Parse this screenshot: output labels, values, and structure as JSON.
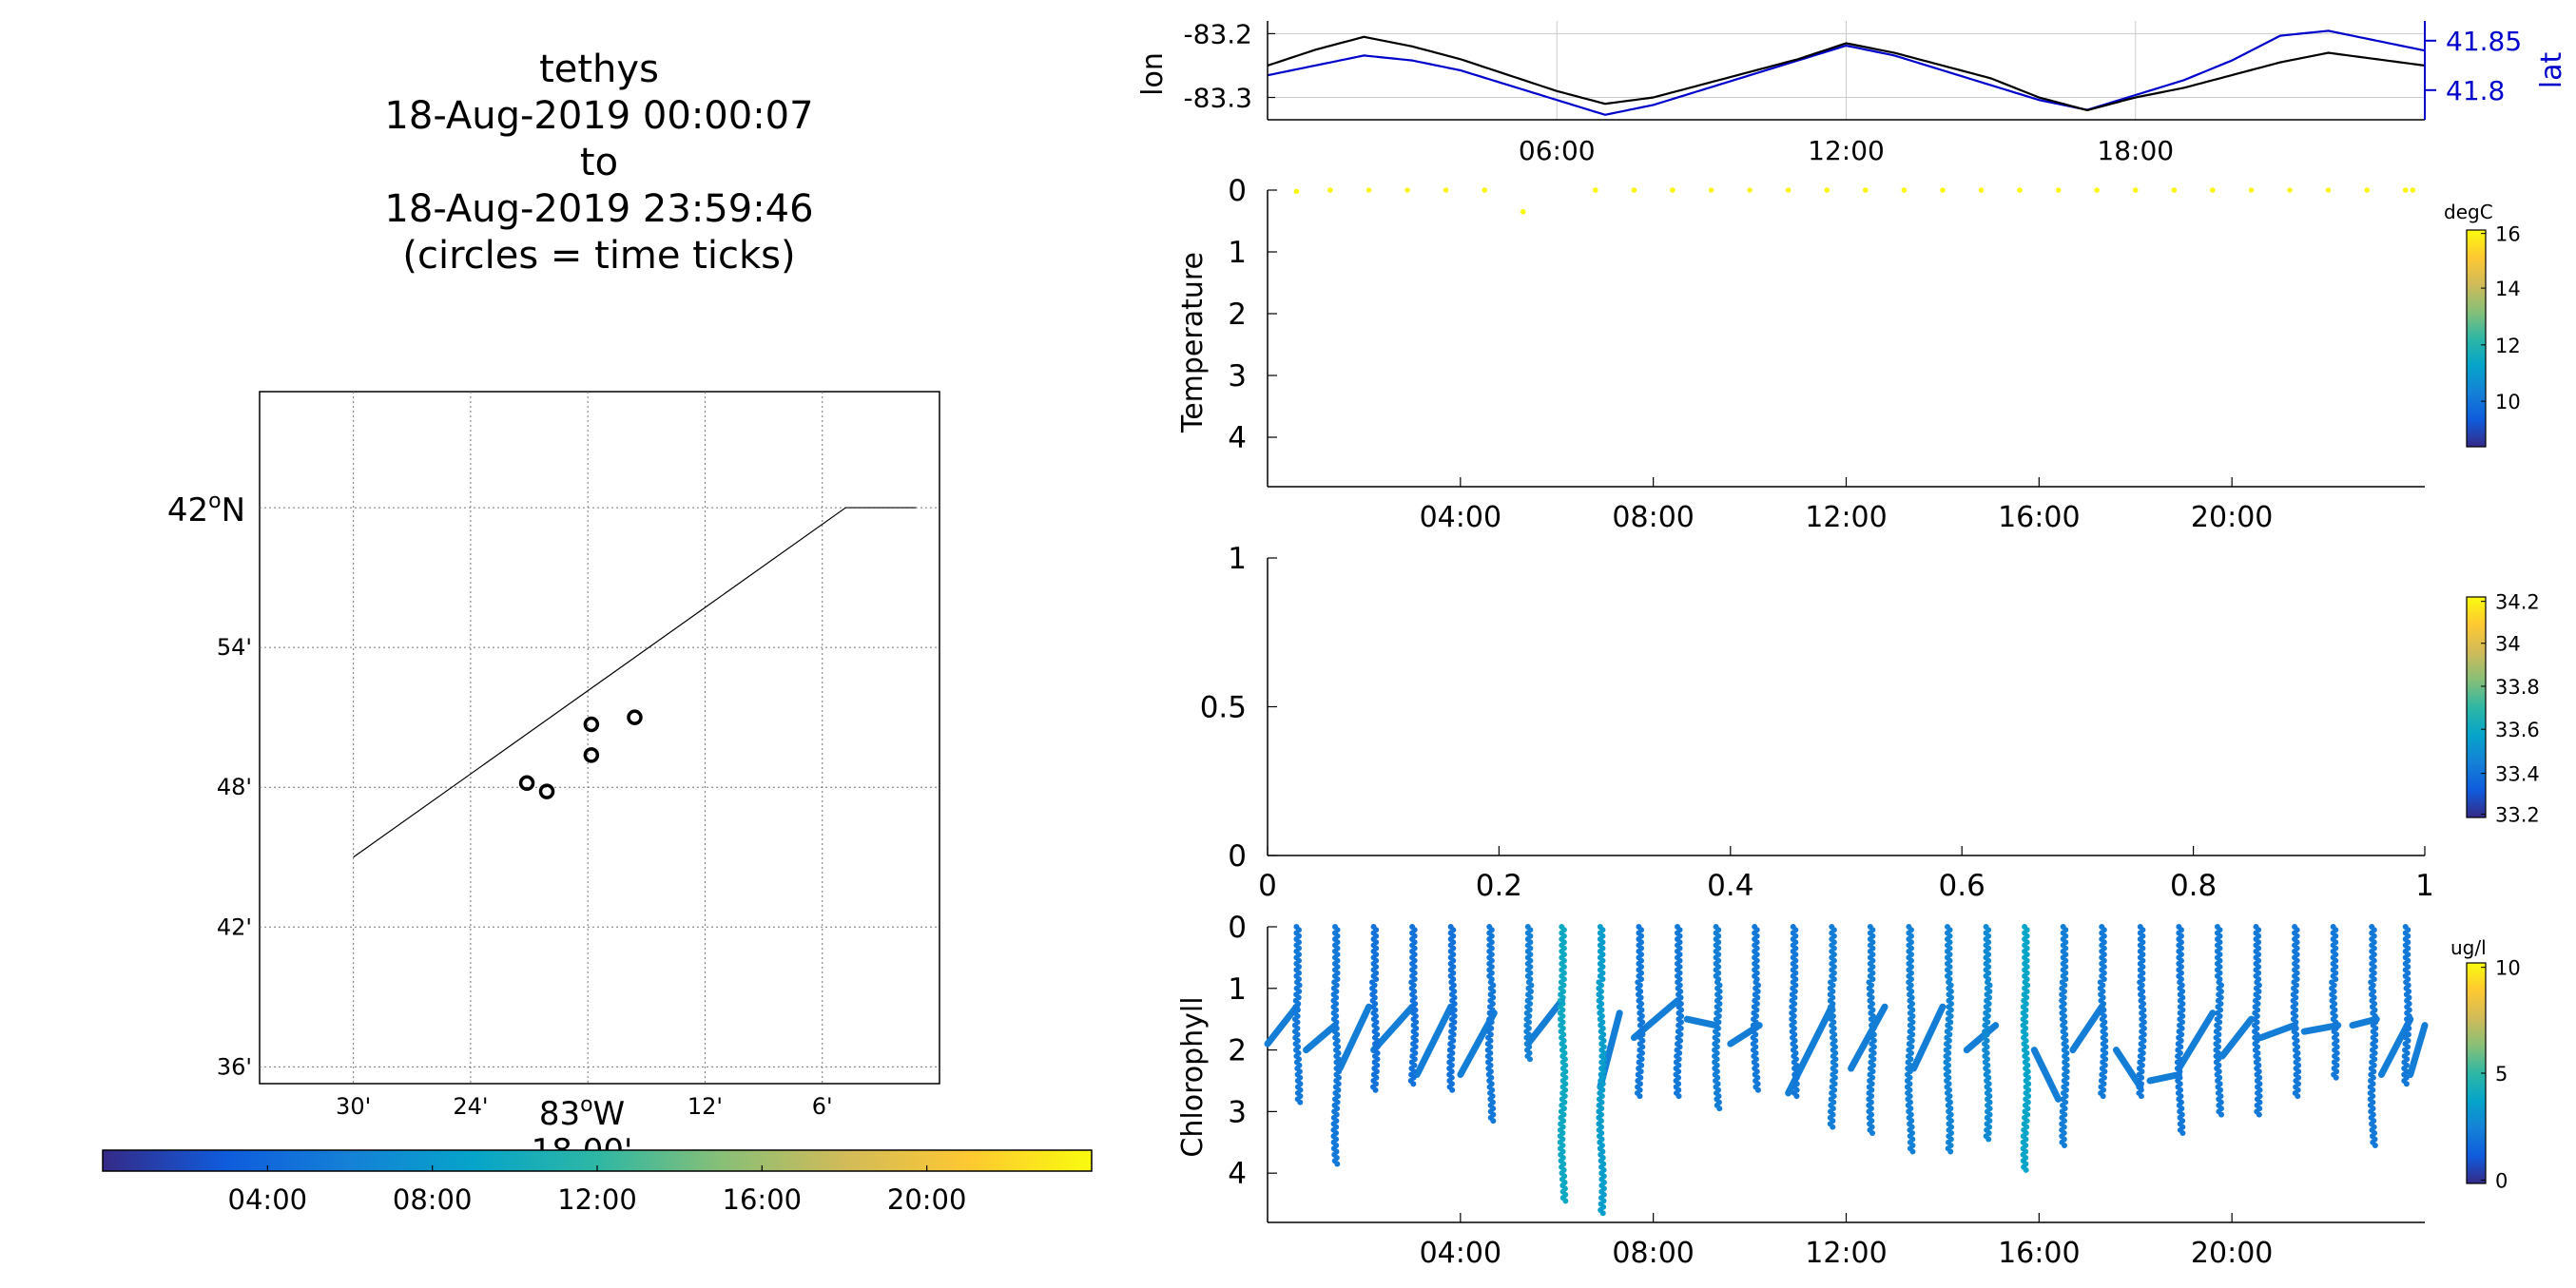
{
  "colors": {
    "lon_line": "#000000",
    "lat_line": "#0000cc",
    "colormap": [
      "#352a87",
      "#0f5cdd",
      "#1481d6",
      "#06a4ca",
      "#2eb7a4",
      "#87bf77",
      "#d1bb59",
      "#fec832",
      "#f9fb0e"
    ]
  },
  "map": {
    "title_lines": [
      "tethys",
      "18-Aug-2019 00:00:07",
      "to",
      "18-Aug-2019 23:59:46",
      "(circles = time ticks)"
    ],
    "lat_labels": [
      {
        "lat": 42.0,
        "label": "42",
        "suffix": "N",
        "major": true
      },
      {
        "lat": 41.9,
        "label": "54'",
        "major": false
      },
      {
        "lat": 41.8,
        "label": "48'",
        "major": false
      },
      {
        "lat": 41.7,
        "label": "42'",
        "major": false
      },
      {
        "lat": 41.6,
        "label": "36'",
        "major": false
      }
    ],
    "lon_labels": [
      {
        "lon": -83.5,
        "label": "30'"
      },
      {
        "lon": -83.4,
        "label": "24'"
      },
      {
        "lon": -83.2,
        "label": "12'"
      },
      {
        "lon": -83.1,
        "label": "6'"
      }
    ],
    "xlabel_main": "83",
    "xlabel_suffix": "W",
    "xlabel_sub": "18.00'",
    "coast_line": [
      [
        -83.5,
        41.75
      ],
      [
        -83.08,
        42.0
      ],
      [
        -83.02,
        42.0
      ]
    ],
    "time_circles": [
      [
        -83.352,
        41.803
      ],
      [
        -83.335,
        41.797
      ],
      [
        -83.297,
        41.823
      ],
      [
        -83.297,
        41.845
      ],
      [
        -83.26,
        41.85
      ]
    ],
    "time_colorbar_ticks": [
      "04:00",
      "08:00",
      "12:00",
      "16:00",
      "20:00"
    ]
  },
  "position_plot": {
    "ylabel_left": "lon",
    "ylabel_right": "lat",
    "left_ticks": [
      "-83.2",
      "-83.3"
    ],
    "right_ticks": [
      "41.85",
      "41.8"
    ],
    "xticks": [
      "06:00",
      "12:00",
      "18:00"
    ]
  },
  "temperature_plot": {
    "ylabel": "Temperature",
    "yticks": [
      "0",
      "1",
      "2",
      "3",
      "4"
    ],
    "xticks": [
      "04:00",
      "08:00",
      "12:00",
      "16:00",
      "20:00"
    ],
    "colorbar_unit": "degC",
    "colorbar_ticks": [
      "16",
      "14",
      "12",
      "10"
    ]
  },
  "salinity_plot": {
    "yticks": [
      "1",
      "0.5",
      "0"
    ],
    "xticks": [
      "0",
      "0.2",
      "0.4",
      "0.6",
      "0.8",
      "1"
    ],
    "colorbar_ticks": [
      "34.2",
      "34",
      "33.8",
      "33.6",
      "33.4",
      "33.2"
    ]
  },
  "chlorophyll_plot": {
    "ylabel": "Chlorophyll",
    "yticks": [
      "0",
      "1",
      "2",
      "3",
      "4"
    ],
    "xticks": [
      "04:00",
      "08:00",
      "12:00",
      "16:00",
      "20:00"
    ],
    "colorbar_unit": "ug/l",
    "colorbar_ticks": [
      "10",
      "5",
      "0"
    ]
  },
  "chart_data": [
    {
      "type": "line",
      "x_unit": "hour",
      "xlim": [
        0,
        24
      ],
      "x_ticks": [
        6,
        12,
        18
      ],
      "series": [
        {
          "name": "lon",
          "axis": "left",
          "ylim": [
            -83.335,
            -83.18
          ],
          "x": [
            0,
            1,
            2,
            3,
            4,
            5,
            6,
            7,
            8,
            9,
            10,
            11,
            12,
            13,
            14,
            15,
            16,
            17,
            18,
            19,
            20,
            21,
            22,
            23,
            24
          ],
          "y": [
            -83.25,
            -83.225,
            -83.205,
            -83.22,
            -83.24,
            -83.265,
            -83.29,
            -83.31,
            -83.3,
            -83.28,
            -83.26,
            -83.24,
            -83.215,
            -83.23,
            -83.25,
            -83.27,
            -83.3,
            -83.32,
            -83.3,
            -83.285,
            -83.265,
            -83.245,
            -83.23,
            -83.24,
            -83.25
          ]
        },
        {
          "name": "lat",
          "axis": "right",
          "ylim": [
            41.77,
            41.87
          ],
          "x": [
            0,
            1,
            2,
            3,
            4,
            5,
            6,
            7,
            8,
            9,
            10,
            11,
            12,
            13,
            14,
            15,
            16,
            17,
            18,
            19,
            20,
            21,
            22,
            23,
            24
          ],
          "y": [
            41.815,
            41.825,
            41.835,
            41.83,
            41.82,
            41.805,
            41.79,
            41.775,
            41.785,
            41.8,
            41.815,
            41.83,
            41.845,
            41.835,
            41.82,
            41.805,
            41.79,
            41.78,
            41.795,
            41.81,
            41.83,
            41.855,
            41.86,
            41.85,
            41.84
          ]
        }
      ]
    },
    {
      "type": "scatter",
      "x_unit": "hour",
      "xlim": [
        0,
        24
      ],
      "ylim": [
        4.8,
        0
      ],
      "clim": [
        8.5,
        16.1
      ],
      "x": [
        0.6,
        1.3,
        2.1,
        2.9,
        3.7,
        4.5,
        5.3,
        6.8,
        7.6,
        8.4,
        9.2,
        10.0,
        10.8,
        11.6,
        12.4,
        13.2,
        14.0,
        14.8,
        15.6,
        16.4,
        17.2,
        18.0,
        18.8,
        19.6,
        20.4,
        21.2,
        22.0,
        22.8,
        23.6,
        23.75
      ],
      "y": [
        0.02,
        0,
        0,
        0,
        0,
        0,
        0.35,
        0,
        0,
        0,
        0,
        0,
        0,
        0,
        0,
        0,
        0,
        0,
        0,
        0,
        0,
        0,
        0,
        0,
        0,
        0,
        0,
        0,
        0,
        0
      ],
      "color_value": [
        16,
        16,
        16,
        16,
        16,
        16,
        16,
        16,
        16,
        16,
        16,
        16,
        16,
        16,
        16,
        16,
        16,
        16,
        16,
        16,
        16,
        16,
        16,
        16,
        16,
        16,
        16,
        16,
        16,
        16
      ]
    },
    {
      "type": "scatter",
      "xlim": [
        0,
        1
      ],
      "ylim": [
        0,
        1
      ],
      "clim": [
        33.2,
        34.2
      ],
      "x": [],
      "y": []
    },
    {
      "type": "scatter",
      "x_unit": "hour",
      "xlim": [
        0,
        24
      ],
      "ylim": [
        4.8,
        0
      ],
      "clim": [
        0,
        10
      ],
      "profile_times": [
        0.6,
        1.4,
        2.2,
        3.0,
        3.8,
        4.6,
        5.4,
        6.1,
        6.9,
        7.7,
        8.5,
        9.3,
        10.1,
        10.9,
        11.7,
        12.5,
        13.3,
        14.1,
        14.9,
        15.7,
        16.5,
        17.3,
        18.1,
        18.9,
        19.7,
        20.5,
        21.3,
        22.1,
        22.9,
        23.6
      ],
      "profile_max_depth": [
        2.9,
        3.9,
        2.7,
        2.6,
        2.7,
        3.2,
        2.2,
        4.4,
        4.6,
        2.8,
        2.8,
        3.0,
        2.7,
        2.8,
        3.3,
        3.4,
        3.7,
        3.7,
        3.5,
        4.0,
        3.6,
        2.8,
        2.8,
        3.4,
        3.1,
        3.1,
        2.8,
        2.5,
        3.6,
        2.6
      ],
      "profile_color": [
        2.2,
        2.2,
        2.0,
        2.0,
        2.0,
        2.2,
        2.5,
        4.0,
        3.5,
        2.2,
        2.2,
        2.4,
        2.2,
        2.2,
        2.4,
        2.4,
        2.5,
        2.6,
        2.8,
        3.8,
        2.4,
        2.3,
        2.2,
        2.2,
        2.3,
        2.2,
        2.2,
        2.2,
        2.2,
        2.2
      ],
      "tow_segments": [
        [
          0.0,
          1.9,
          0.6,
          1.3
        ],
        [
          0.8,
          2.0,
          1.4,
          1.6
        ],
        [
          1.5,
          2.3,
          2.1,
          1.3
        ],
        [
          2.2,
          2.0,
          3.0,
          1.3
        ],
        [
          3.1,
          2.4,
          3.8,
          1.3
        ],
        [
          4.0,
          2.4,
          4.7,
          1.4
        ],
        [
          5.4,
          1.9,
          6.1,
          1.2
        ],
        [
          6.9,
          2.6,
          7.3,
          1.4
        ],
        [
          7.6,
          1.8,
          8.5,
          1.2
        ],
        [
          8.7,
          1.5,
          9.3,
          1.6
        ],
        [
          9.6,
          1.9,
          10.2,
          1.6
        ],
        [
          10.8,
          2.7,
          11.7,
          1.3
        ],
        [
          12.1,
          2.3,
          12.8,
          1.3
        ],
        [
          13.4,
          2.3,
          14.0,
          1.3
        ],
        [
          14.5,
          2.0,
          15.1,
          1.6
        ],
        [
          15.9,
          2.0,
          16.4,
          2.8
        ],
        [
          16.7,
          2.0,
          17.3,
          1.3
        ],
        [
          17.6,
          2.0,
          18.1,
          2.6
        ],
        [
          18.3,
          2.5,
          18.9,
          2.4
        ],
        [
          18.9,
          2.3,
          19.6,
          1.4
        ],
        [
          19.8,
          2.1,
          20.4,
          1.5
        ],
        [
          20.6,
          1.8,
          21.3,
          1.6
        ],
        [
          21.5,
          1.7,
          22.2,
          1.6
        ],
        [
          22.5,
          1.6,
          23.0,
          1.5
        ],
        [
          23.1,
          2.4,
          23.7,
          1.5
        ],
        [
          23.7,
          2.4,
          24.0,
          1.6
        ]
      ]
    }
  ]
}
